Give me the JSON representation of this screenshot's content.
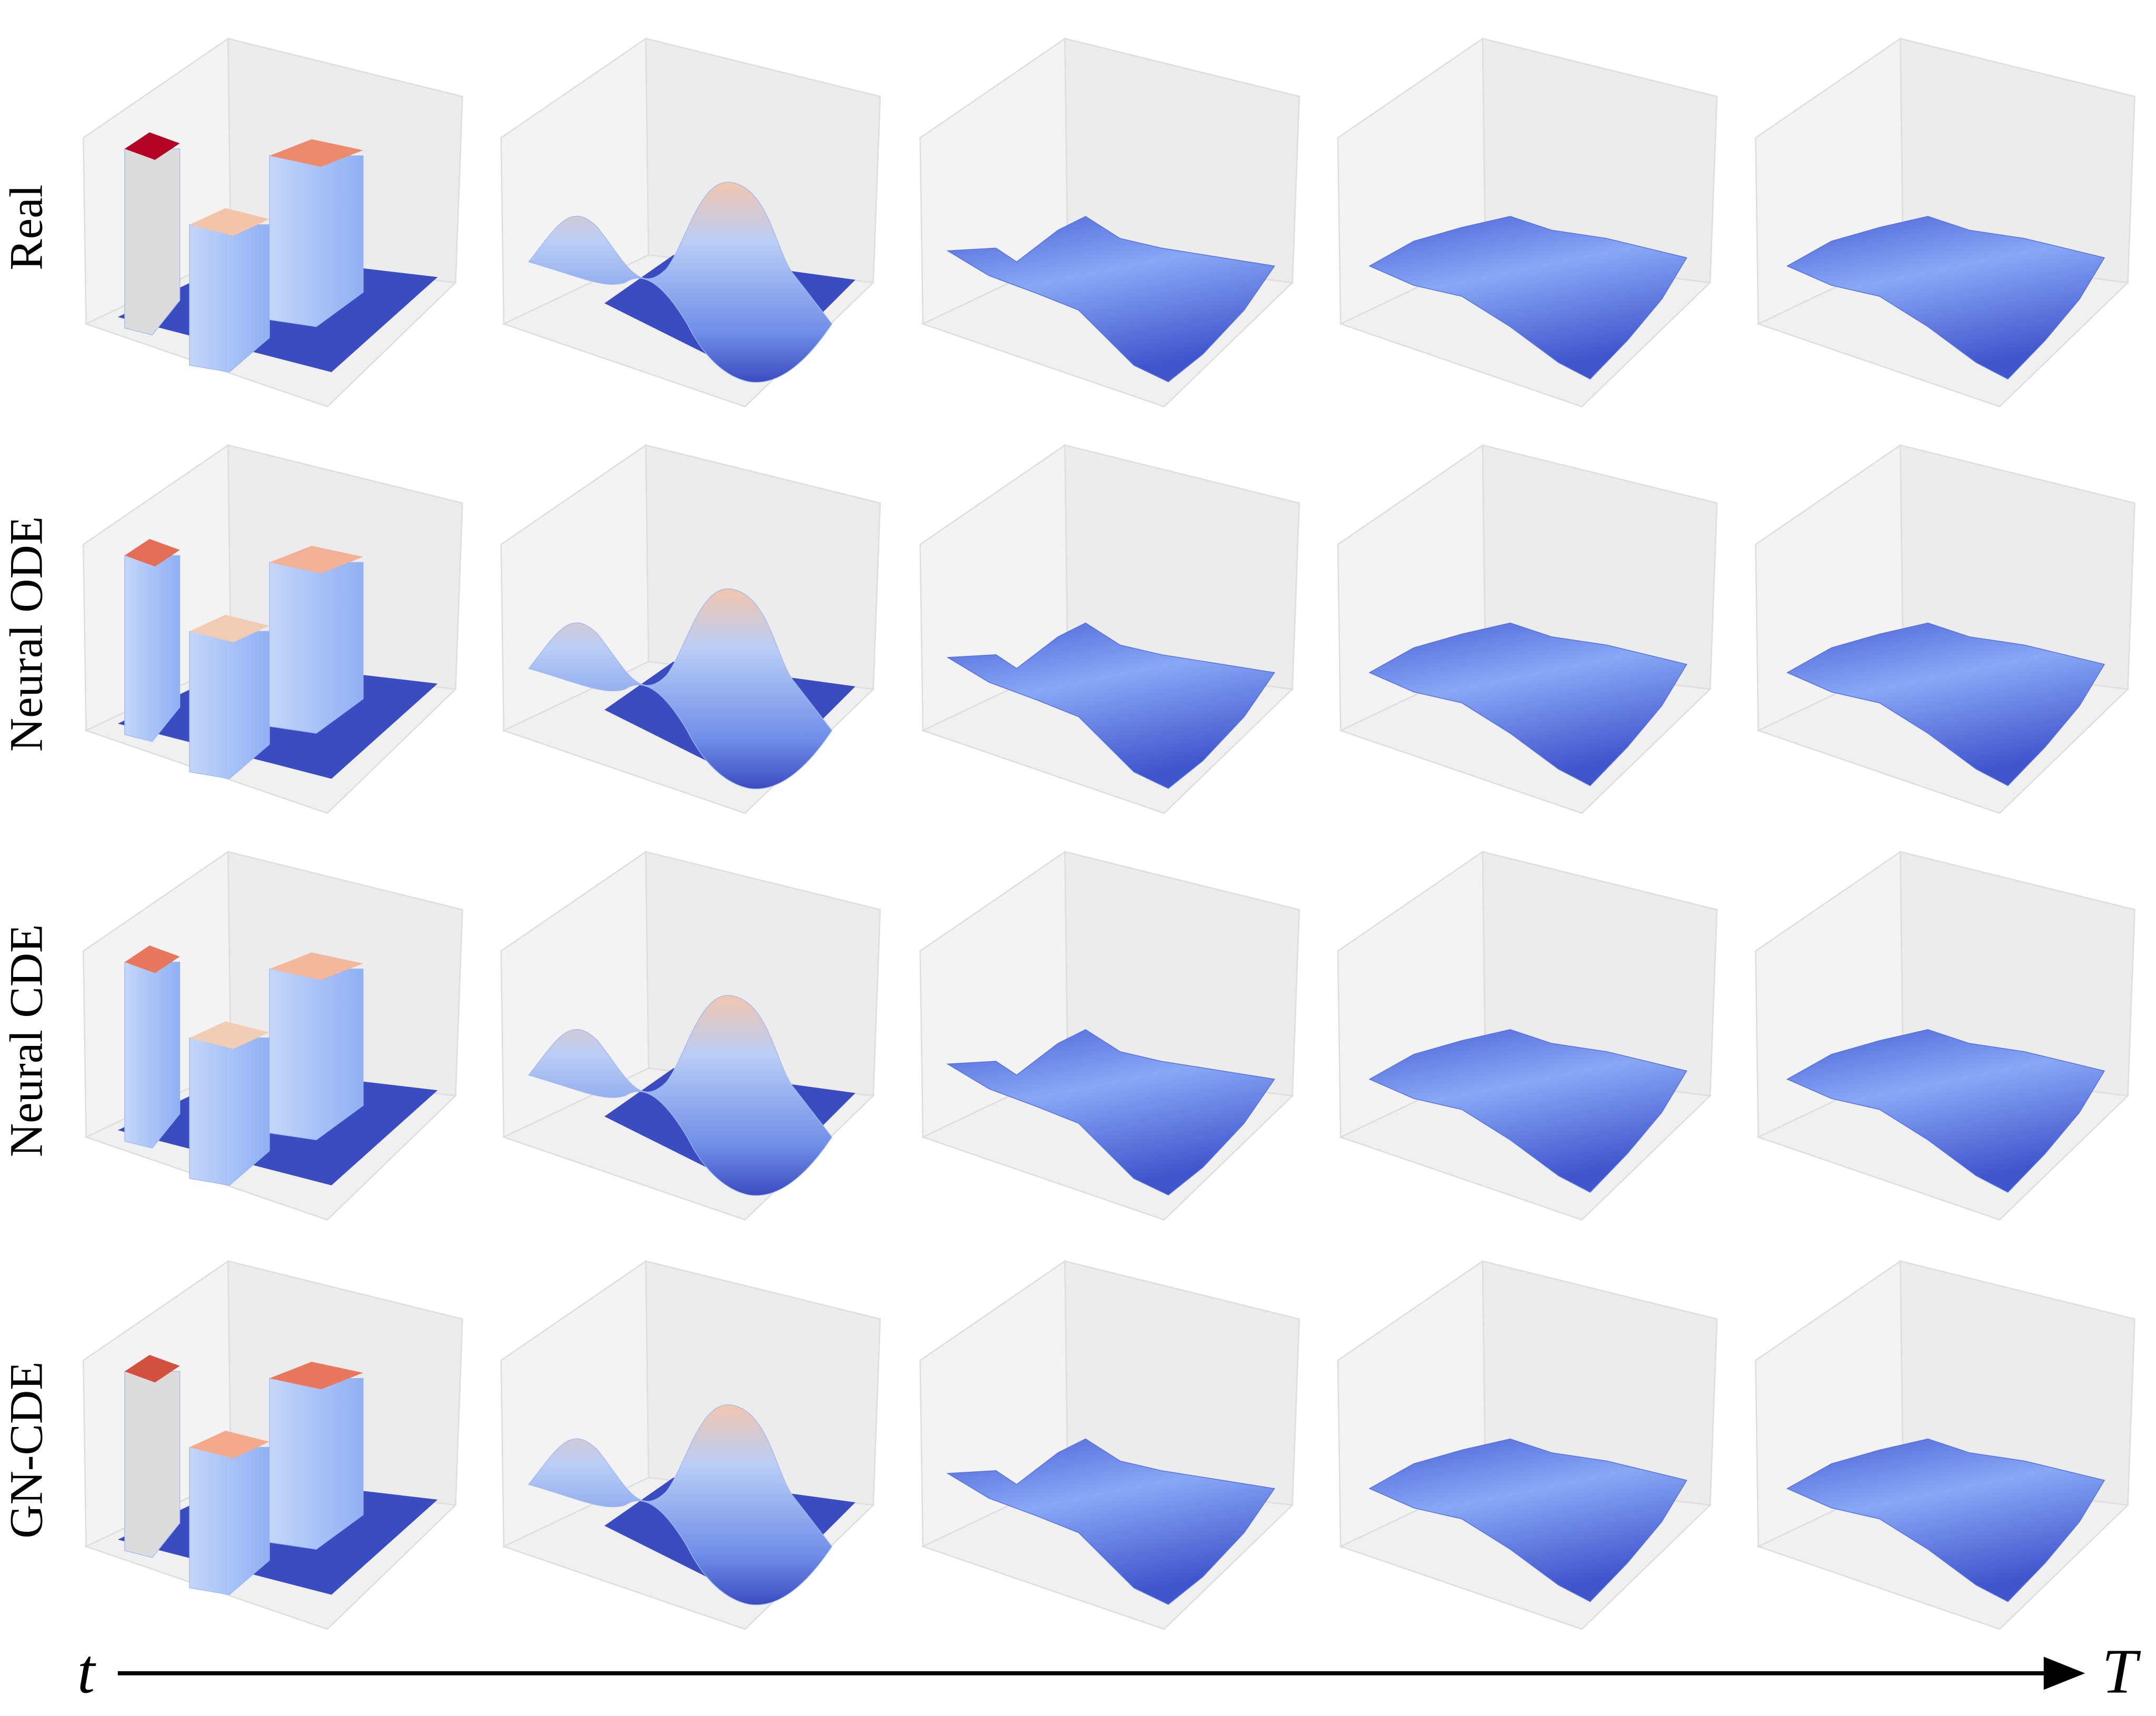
{
  "row_labels": [
    "Real",
    "Neural ODE",
    "Neural CDE",
    "GN-CDE"
  ],
  "time_axis": {
    "start": "t",
    "end": "T"
  }
}
